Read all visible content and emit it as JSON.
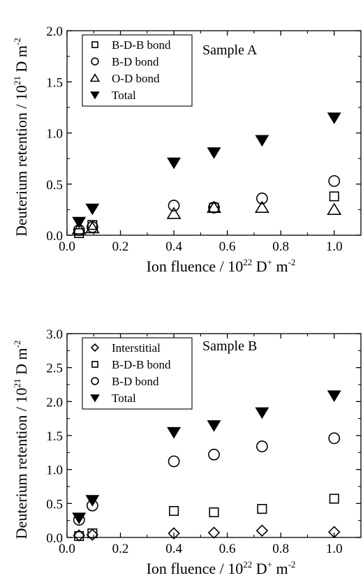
{
  "chart_data": [
    {
      "type": "scatter",
      "annotation": "Sample A",
      "xlabel": {
        "main": "Ion fluence / 10",
        "sup1": "22",
        "mid": " D",
        "sup2": "+",
        "end": " m",
        "sup3": "-2"
      },
      "ylabel": {
        "main": "Deuterium retention / 10",
        "sup1": "21",
        "end": " D m",
        "sup2": "-2"
      },
      "xlim": [
        0,
        1.1
      ],
      "ylim": [
        0,
        2.0
      ],
      "xticks": [
        "0.0",
        "0.2",
        "0.4",
        "0.6",
        "0.8",
        "1.0"
      ],
      "yticks": [
        "0.0",
        "0.5",
        "1.0",
        "1.5",
        "2.0"
      ],
      "grid": false,
      "legend_position": "top-left",
      "series": [
        {
          "name": "B-D-B bond",
          "marker": "square",
          "x": [
            0.045,
            0.095,
            0.55,
            1.0
          ],
          "y": [
            0.02,
            0.1,
            0.27,
            0.38
          ]
        },
        {
          "name": "B-D bond",
          "marker": "circle",
          "x": [
            0.045,
            0.095,
            0.4,
            0.55,
            0.73,
            1.0
          ],
          "y": [
            0.05,
            0.08,
            0.29,
            0.27,
            0.36,
            0.53
          ]
        },
        {
          "name": "O-D bond",
          "marker": "triangle-up",
          "x": [
            0.045,
            0.095,
            0.4,
            0.55,
            0.73,
            1.0
          ],
          "y": [
            0.06,
            0.07,
            0.21,
            0.27,
            0.27,
            0.25
          ]
        },
        {
          "name": "Total",
          "marker": "triangle-down-filled",
          "x": [
            0.045,
            0.095,
            0.4,
            0.55,
            0.73,
            1.0
          ],
          "y": [
            0.13,
            0.26,
            0.71,
            0.81,
            0.93,
            1.15
          ]
        }
      ]
    },
    {
      "type": "scatter",
      "annotation": "Sample B",
      "xlabel": {
        "main": "Ion fluence / 10",
        "sup1": "22",
        "mid": " D",
        "sup2": "+",
        "end": " m",
        "sup3": "-2"
      },
      "ylabel": {
        "main": "Deuterium retention / 10",
        "sup1": "21",
        "end": " D m",
        "sup2": "-2"
      },
      "xlim": [
        0,
        1.1
      ],
      "ylim": [
        0,
        3.0
      ],
      "xticks": [
        "0.0",
        "0.2",
        "0.4",
        "0.6",
        "0.8",
        "1.0"
      ],
      "yticks": [
        "0.0",
        "0.5",
        "1.0",
        "1.5",
        "2.0",
        "2.5",
        "3.0"
      ],
      "grid": false,
      "legend_position": "top-left",
      "series": [
        {
          "name": "Interstitial",
          "marker": "diamond",
          "x": [
            0.045,
            0.095,
            0.4,
            0.55,
            0.73,
            1.0
          ],
          "y": [
            0.03,
            0.04,
            0.06,
            0.07,
            0.1,
            0.08
          ]
        },
        {
          "name": "B-D-B bond",
          "marker": "square",
          "x": [
            0.045,
            0.095,
            0.4,
            0.55,
            0.73,
            1.0
          ],
          "y": [
            0.02,
            0.06,
            0.39,
            0.37,
            0.42,
            0.57
          ]
        },
        {
          "name": "B-D bond",
          "marker": "circle",
          "x": [
            0.045,
            0.095,
            0.4,
            0.55,
            0.73,
            1.0
          ],
          "y": [
            0.26,
            0.47,
            1.12,
            1.22,
            1.34,
            1.46
          ]
        },
        {
          "name": "Total",
          "marker": "triangle-down-filled",
          "x": [
            0.045,
            0.095,
            0.4,
            0.55,
            0.73,
            1.0
          ],
          "y": [
            0.29,
            0.55,
            1.55,
            1.65,
            1.84,
            2.09
          ]
        }
      ]
    }
  ]
}
